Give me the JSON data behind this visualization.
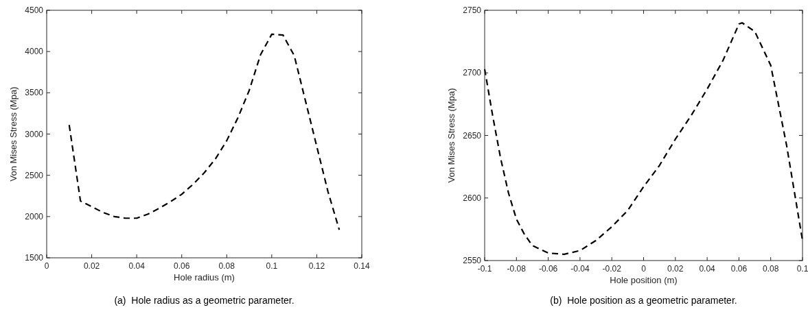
{
  "chart_data": [
    {
      "type": "line",
      "xlabel": "Hole radius (m)",
      "ylabel": "Von Mises Stress (Mpa)",
      "annotations": [
        "(a)  Hole radius as a geometric parameter."
      ],
      "xlim": [
        0,
        0.14
      ],
      "xticks": [
        0,
        0.02,
        0.04,
        0.06,
        0.08,
        0.1,
        0.12,
        0.14
      ],
      "ylim": [
        1500,
        4500
      ],
      "yticks": [
        1500,
        2000,
        2500,
        3000,
        3500,
        4000,
        4500
      ],
      "grid": false,
      "marker": "none",
      "line_style": "dashed",
      "series": [
        {
          "color": "#000000",
          "x": [
            0.01,
            0.015,
            0.02,
            0.025,
            0.03,
            0.035,
            0.04,
            0.045,
            0.05,
            0.055,
            0.06,
            0.065,
            0.07,
            0.075,
            0.08,
            0.085,
            0.09,
            0.095,
            0.1,
            0.105,
            0.11,
            0.115,
            0.12,
            0.125,
            0.13
          ],
          "values": [
            3110,
            2190,
            2120,
            2050,
            2000,
            1980,
            1980,
            2030,
            2100,
            2180,
            2270,
            2390,
            2530,
            2700,
            2920,
            3200,
            3530,
            3960,
            4210,
            4200,
            3950,
            3400,
            2850,
            2300,
            1840
          ]
        }
      ]
    },
    {
      "type": "line",
      "xlabel": "Hole position (m)",
      "ylabel": "Von Mises Stress (Mpa)",
      "annotations": [
        "(b)  Hole position as a geometric parameter."
      ],
      "xlim": [
        -0.1,
        0.1
      ],
      "xticks": [
        -0.1,
        -0.08,
        -0.06,
        -0.04,
        -0.02,
        0,
        0.02,
        0.04,
        0.06,
        0.08,
        0.1
      ],
      "ylim": [
        2550,
        2750
      ],
      "yticks": [
        2550,
        2600,
        2650,
        2700,
        2750
      ],
      "grid": false,
      "marker": "none",
      "line_style": "dashed",
      "series": [
        {
          "color": "#000000",
          "x": [
            -0.1,
            -0.095,
            -0.09,
            -0.085,
            -0.08,
            -0.075,
            -0.07,
            -0.06,
            -0.05,
            -0.04,
            -0.03,
            -0.02,
            -0.01,
            0,
            0.01,
            0.02,
            0.03,
            0.04,
            0.05,
            0.06,
            0.062,
            0.07,
            0.08,
            0.09,
            0.1
          ],
          "values": [
            2703,
            2666,
            2632,
            2604,
            2583,
            2571,
            2562,
            2556,
            2555,
            2558,
            2566,
            2577,
            2590,
            2609,
            2626,
            2647,
            2666,
            2687,
            2710,
            2739,
            2740,
            2733,
            2706,
            2642,
            2566
          ]
        }
      ]
    }
  ]
}
